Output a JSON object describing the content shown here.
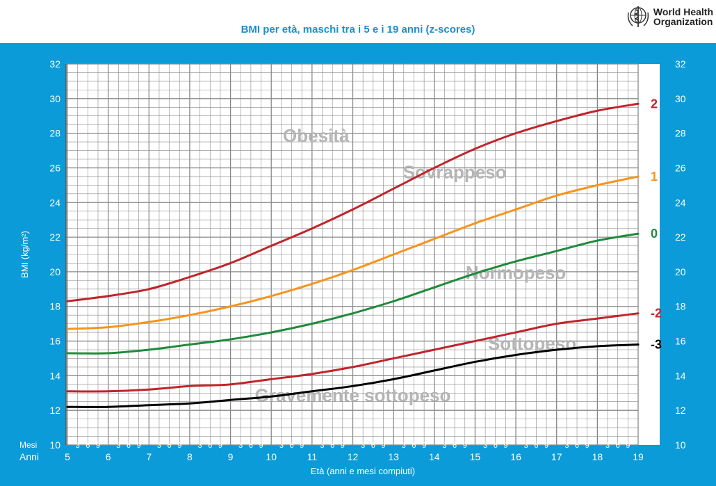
{
  "header": {
    "title": "BMI per età, maschi tra i 5 e i 19 anni (z-scores)",
    "org_name": "World Health\nOrganization",
    "logo_icon": "who-emblem-icon"
  },
  "colors": {
    "frame": "#0b9bd8",
    "grid": "#888888",
    "red": "#c0242b",
    "orange": "#f7941d",
    "green": "#1f8a3b",
    "black": "#000000",
    "zone_text": "#b5b5b5"
  },
  "chart_data": {
    "type": "line",
    "xlabel": "Età (anni e mesi compiuti)",
    "ylabel": "BMI (kg/m²)",
    "months_label": "Mesi",
    "years_label": "Anni",
    "month_ticks": [
      "3",
      "6",
      "9"
    ],
    "xlim": [
      5,
      19
    ],
    "ylim": [
      10,
      32
    ],
    "years": [
      5,
      6,
      7,
      8,
      9,
      10,
      11,
      12,
      13,
      14,
      15,
      16,
      17,
      18,
      19
    ],
    "yticks": [
      10,
      12,
      14,
      16,
      18,
      20,
      22,
      24,
      26,
      28,
      30,
      32
    ],
    "grid": true,
    "x": [
      5,
      6,
      7,
      8,
      9,
      10,
      11,
      12,
      13,
      14,
      15,
      16,
      17,
      18,
      19
    ],
    "series": [
      {
        "name": "2",
        "color": "#c0242b",
        "values": [
          18.3,
          18.6,
          19.0,
          19.7,
          20.5,
          21.5,
          22.5,
          23.6,
          24.8,
          26.0,
          27.1,
          28.0,
          28.7,
          29.3,
          29.7
        ]
      },
      {
        "name": "1",
        "color": "#f7941d",
        "values": [
          16.7,
          16.8,
          17.1,
          17.5,
          18.0,
          18.6,
          19.3,
          20.1,
          21.0,
          21.9,
          22.8,
          23.6,
          24.4,
          25.0,
          25.5
        ]
      },
      {
        "name": "0",
        "color": "#1f8a3b",
        "values": [
          15.3,
          15.3,
          15.5,
          15.8,
          16.1,
          16.5,
          17.0,
          17.6,
          18.3,
          19.1,
          19.9,
          20.6,
          21.2,
          21.8,
          22.2
        ]
      },
      {
        "name": "-2",
        "color": "#c0242b",
        "values": [
          13.1,
          13.1,
          13.2,
          13.4,
          13.5,
          13.8,
          14.1,
          14.5,
          15.0,
          15.5,
          16.0,
          16.5,
          17.0,
          17.3,
          17.6
        ]
      },
      {
        "name": "-3",
        "color": "#000000",
        "values": [
          12.2,
          12.2,
          12.3,
          12.4,
          12.6,
          12.8,
          13.1,
          13.4,
          13.8,
          14.3,
          14.8,
          15.2,
          15.5,
          15.7,
          15.8
        ]
      }
    ],
    "zones": [
      {
        "label": "Obesità",
        "x": 11.1,
        "y": 27.5
      },
      {
        "label": "Sovrappeso",
        "x": 14.5,
        "y": 25.4
      },
      {
        "label": "Normopeso",
        "x": 16.0,
        "y": 19.6
      },
      {
        "label": "Sottopeso",
        "x": 16.4,
        "y": 15.5
      },
      {
        "label": "Gravemente sottopeso",
        "x": 12.0,
        "y": 12.5
      }
    ]
  }
}
